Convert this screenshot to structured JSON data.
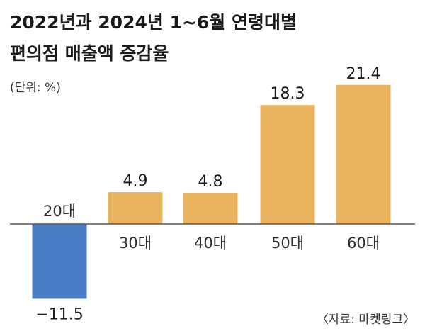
{
  "chart_data": {
    "type": "bar",
    "title_lines": [
      "2022년과 2024년 1~6월 연령대별",
      "편의점 매출액 증감율"
    ],
    "unit": "(단위: %)",
    "categories": [
      "20대",
      "30대",
      "40대",
      "50대",
      "60대"
    ],
    "values": [
      -11.5,
      4.9,
      4.8,
      18.3,
      21.4
    ],
    "value_labels": [
      "−11.5",
      "4.9",
      "4.8",
      "18.3",
      "21.4"
    ],
    "ylim": [
      -13,
      22
    ],
    "grid": false,
    "legend": "none",
    "source": "〈자료: 마켓링크〉"
  },
  "colors": {
    "positive": "#E8B45F",
    "negative": "#4A7CC6",
    "baseline": "#555555",
    "background": "#FFFFFF"
  }
}
